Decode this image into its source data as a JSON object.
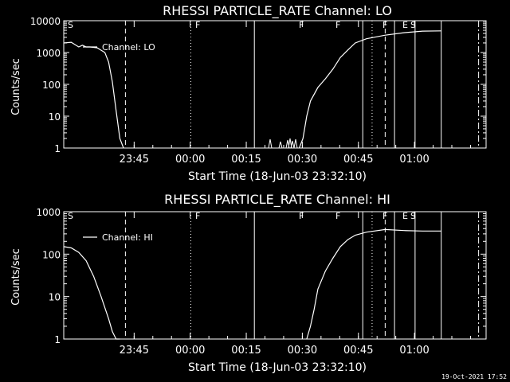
{
  "footer": {
    "timestamp": "19-Oct-2021 17:52"
  },
  "chart_data": [
    {
      "type": "line",
      "title": "RHESSI PARTICLE_RATE Channel: LO",
      "xlabel": "Start Time (18-Jun-03 23:32:10)",
      "ylabel": "Counts/sec",
      "legend": "Channel: LO",
      "legend_position": "top-left",
      "yscale": "log",
      "ylim": [
        1,
        10000
      ],
      "xlim_minutes_after_start": [
        -6,
        96
      ],
      "xticks": [
        "23:45",
        "00:00",
        "00:15",
        "00:30",
        "00:45",
        "01:00"
      ],
      "yticks": [
        "1",
        "10",
        "100",
        "1000",
        "10000"
      ],
      "series": [
        {
          "x_minutes_after_start": [
            -6,
            -4,
            -2,
            -1,
            0,
            1,
            2,
            3,
            5,
            6,
            7,
            8,
            9,
            10,
            82,
            83,
            84,
            85,
            87,
            89,
            91,
            93,
            95,
            97,
            100,
            105,
            110,
            115,
            120
          ],
          "values": [
            2000,
            2100,
            1500,
            1700,
            1500,
            1500,
            1450,
            1400,
            1000,
            500,
            120,
            15,
            2,
            1,
            1,
            2,
            10,
            30,
            80,
            150,
            300,
            700,
            1200,
            2000,
            2700,
            3500,
            4200,
            4700,
            4800
          ]
        }
      ],
      "markers": [
        {
          "label": "S",
          "x": "23:32"
        },
        {
          "label": "F",
          "x": "00:01"
        },
        {
          "label": "F",
          "x": "00:27"
        },
        {
          "label": "F",
          "x": "00:36"
        },
        {
          "label": "F",
          "x": "00:46"
        },
        {
          "label": "E",
          "x": "00:50"
        },
        {
          "label": "S",
          "x": "00:53"
        }
      ]
    },
    {
      "type": "line",
      "title": "RHESSI PARTICLE_RATE Channel: HI",
      "xlabel": "Start Time (18-Jun-03 23:32:10)",
      "ylabel": "Counts/sec",
      "legend": "Channel: HI",
      "legend_position": "top-left",
      "yscale": "log",
      "ylim": [
        1,
        1000
      ],
      "xticks": [
        "23:45",
        "00:00",
        "00:15",
        "00:30",
        "00:45",
        "01:00"
      ],
      "yticks": [
        "1",
        "10",
        "100",
        "1000"
      ],
      "series": [
        {
          "x_minutes_after_start": [
            -6,
            -4,
            -2,
            0,
            2,
            4,
            6,
            7,
            8,
            9,
            84,
            85,
            86,
            87,
            89,
            91,
            93,
            95,
            97,
            100,
            105,
            110,
            115,
            120
          ],
          "values": [
            150,
            140,
            110,
            70,
            30,
            10,
            3,
            1.5,
            1,
            1,
            1,
            2,
            5,
            15,
            40,
            80,
            150,
            220,
            280,
            330,
            380,
            360,
            350,
            350
          ]
        }
      ],
      "markers": [
        {
          "label": "S",
          "x": "23:32"
        },
        {
          "label": "F",
          "x": "00:01"
        },
        {
          "label": "F",
          "x": "00:27"
        },
        {
          "label": "F",
          "x": "00:36"
        },
        {
          "label": "F",
          "x": "00:46"
        },
        {
          "label": "E",
          "x": "00:50"
        },
        {
          "label": "S",
          "x": "00:53"
        }
      ]
    }
  ]
}
